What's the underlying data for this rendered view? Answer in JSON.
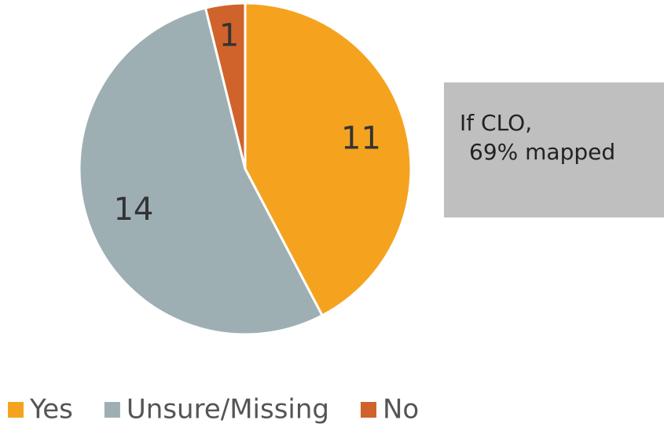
{
  "chart_data": {
    "type": "pie",
    "categories": [
      "Yes",
      "Unsure/Missing",
      "No"
    ],
    "values": [
      11,
      14,
      1
    ],
    "colors": [
      "#F5A31F",
      "#9EAFB4",
      "#D0632B"
    ],
    "annotation": [
      "If CLO,",
      "69% mapped"
    ],
    "legend": "bottom"
  }
}
